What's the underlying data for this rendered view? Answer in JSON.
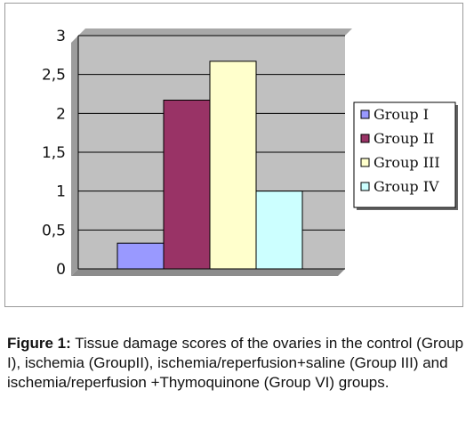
{
  "chart_data": {
    "type": "bar",
    "categories": [
      "Group I",
      "Group II",
      "Group III",
      "Group IV"
    ],
    "values": [
      0.33,
      2.17,
      2.67,
      1.0
    ],
    "colors": [
      "#9999ff",
      "#993366",
      "#ffffcc",
      "#ccffff"
    ],
    "ylim": [
      0,
      3
    ],
    "yticks": [
      "0",
      "0,5",
      "1",
      "1,5",
      "2",
      "2,5",
      "3"
    ],
    "ytick_values": [
      0,
      0.5,
      1,
      1.5,
      2,
      2.5,
      3
    ],
    "plot_background": "#c0c0c0",
    "grid": true,
    "legend_position": "right",
    "legend": [
      "Group I",
      "Group II",
      "Group III",
      "Group IV"
    ]
  },
  "caption": {
    "label": "Figure 1:",
    "text": " Tissue damage scores of the ovaries in the control (Group I), ischemia (GroupII), ischemia/reperfusion+saline (Group III) and ischemia/reperfusion +Thymoquinone (Group VI) groups."
  }
}
